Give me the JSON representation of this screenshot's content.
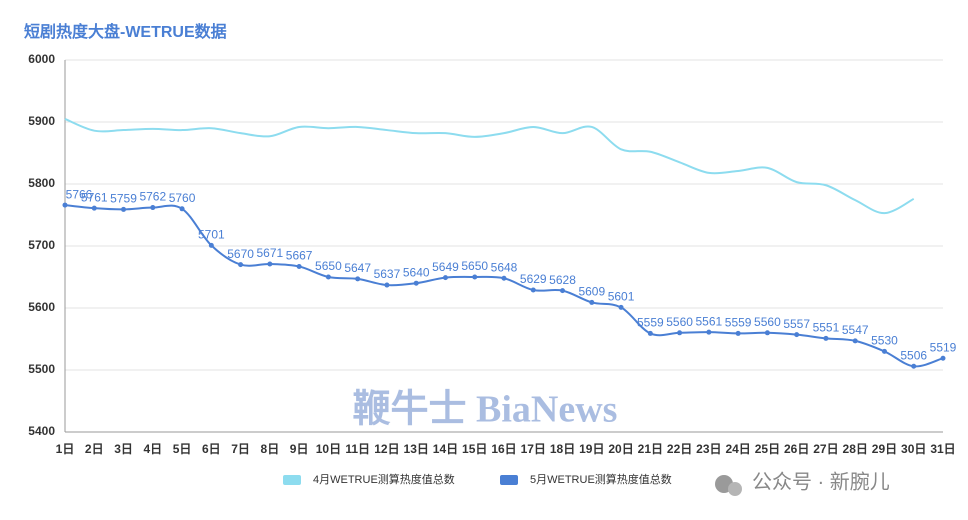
{
  "chart_data": {
    "type": "line",
    "title": "短剧热度大盘-WETRUE数据",
    "categories": [
      "1日",
      "2日",
      "3日",
      "4日",
      "5日",
      "6日",
      "7日",
      "8日",
      "9日",
      "10日",
      "11日",
      "12日",
      "13日",
      "14日",
      "15日",
      "16日",
      "17日",
      "18日",
      "19日",
      "20日",
      "21日",
      "22日",
      "23日",
      "24日",
      "25日",
      "26日",
      "27日",
      "28日",
      "29日",
      "30日",
      "31日"
    ],
    "series": [
      {
        "name": "4月WETRUE测算热度值总数",
        "color": "#8ddcef",
        "show_labels": false,
        "values": [
          5905,
          5886,
          5887,
          5889,
          5887,
          5890,
          5882,
          5877,
          5892,
          5890,
          5892,
          5887,
          5882,
          5882,
          5876,
          5882,
          5892,
          5882,
          5892,
          5856,
          5852,
          5835,
          5818,
          5821,
          5826,
          5803,
          5798,
          5774,
          5753,
          5776,
          null
        ]
      },
      {
        "name": "5月WETRUE测算热度值总数",
        "color": "#4a7fd4",
        "show_labels": true,
        "values": [
          5766,
          5761,
          5759,
          5762,
          5760,
          5701,
          5670,
          5671,
          5667,
          5650,
          5647,
          5637,
          5640,
          5649,
          5650,
          5648,
          5629,
          5628,
          5609,
          5601,
          5559,
          5560,
          5561,
          5559,
          5560,
          5557,
          5551,
          5547,
          5530,
          5506,
          5519
        ]
      }
    ],
    "ylim": [
      5400,
      6000
    ],
    "yticks": [
      5400,
      5500,
      5600,
      5700,
      5800,
      5900,
      6000
    ],
    "grid": true,
    "annotations": [
      "鞭牛士 BiaNews",
      "公众号 · 新腕儿"
    ]
  }
}
